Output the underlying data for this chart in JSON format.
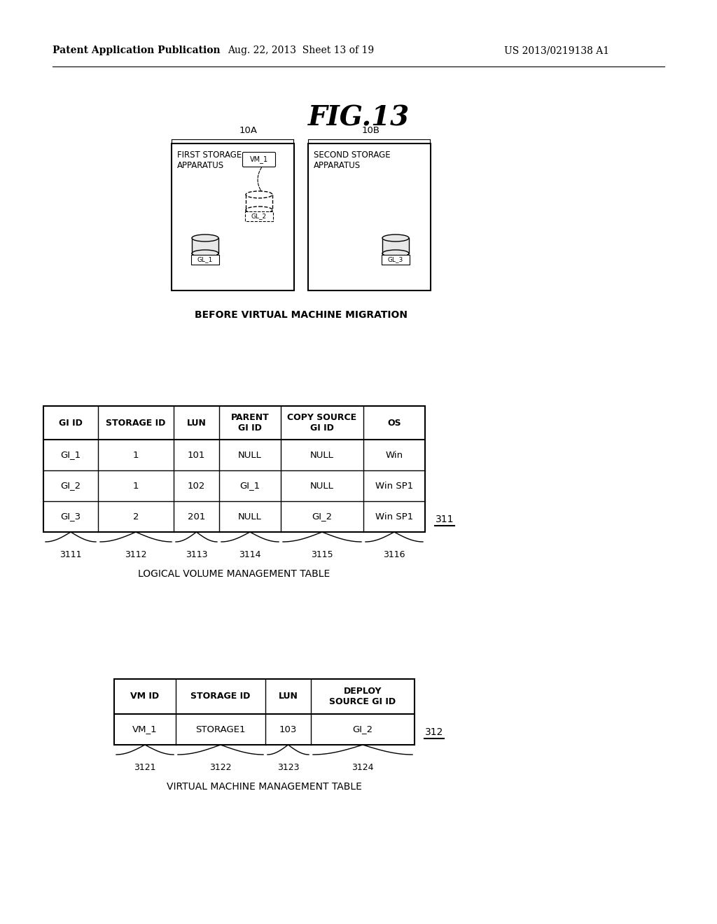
{
  "bg_color": "#ffffff",
  "header_left": "Patent Application Publication",
  "header_mid": "Aug. 22, 2013  Sheet 13 of 19",
  "header_right": "US 2013/0219138 A1",
  "fig_title": "FIG.13",
  "diagram_label_A": "10A",
  "diagram_label_B": "10B",
  "box_A_label": "FIRST STORAGE\nAPPARATUS",
  "box_B_label": "SECOND STORAGE\nAPPARATUS",
  "vm_label": "VM_1",
  "gi_labels": [
    "GL_1",
    "GL_2",
    "GL_3"
  ],
  "below_diagram_text": "BEFORE VIRTUAL MACHINE MIGRATION",
  "table1_title": "LOGICAL VOLUME MANAGEMENT TABLE",
  "table1_ref": "311",
  "table1_cols": [
    "GI ID",
    "STORAGE ID",
    "LUN",
    "PARENT\nGI ID",
    "COPY SOURCE\nGI ID",
    "OS"
  ],
  "table1_col_ids": [
    "3111",
    "3112",
    "3113",
    "3114",
    "3115",
    "3116"
  ],
  "table1_rows": [
    [
      "GI_1",
      "1",
      "101",
      "NULL",
      "NULL",
      "Win"
    ],
    [
      "GI_2",
      "1",
      "102",
      "GI_1",
      "NULL",
      "Win SP1"
    ],
    [
      "GI_3",
      "2",
      "201",
      "NULL",
      "GI_2",
      "Win SP1"
    ]
  ],
  "table2_title": "VIRTUAL MACHINE MANAGEMENT TABLE",
  "table2_ref": "312",
  "table2_cols": [
    "VM ID",
    "STORAGE ID",
    "LUN",
    "DEPLOY\nSOURCE GI ID"
  ],
  "table2_col_ids": [
    "3121",
    "3122",
    "3123",
    "3124"
  ],
  "table2_rows": [
    [
      "VM_1",
      "STORAGE1",
      "103",
      "GI_2"
    ]
  ]
}
